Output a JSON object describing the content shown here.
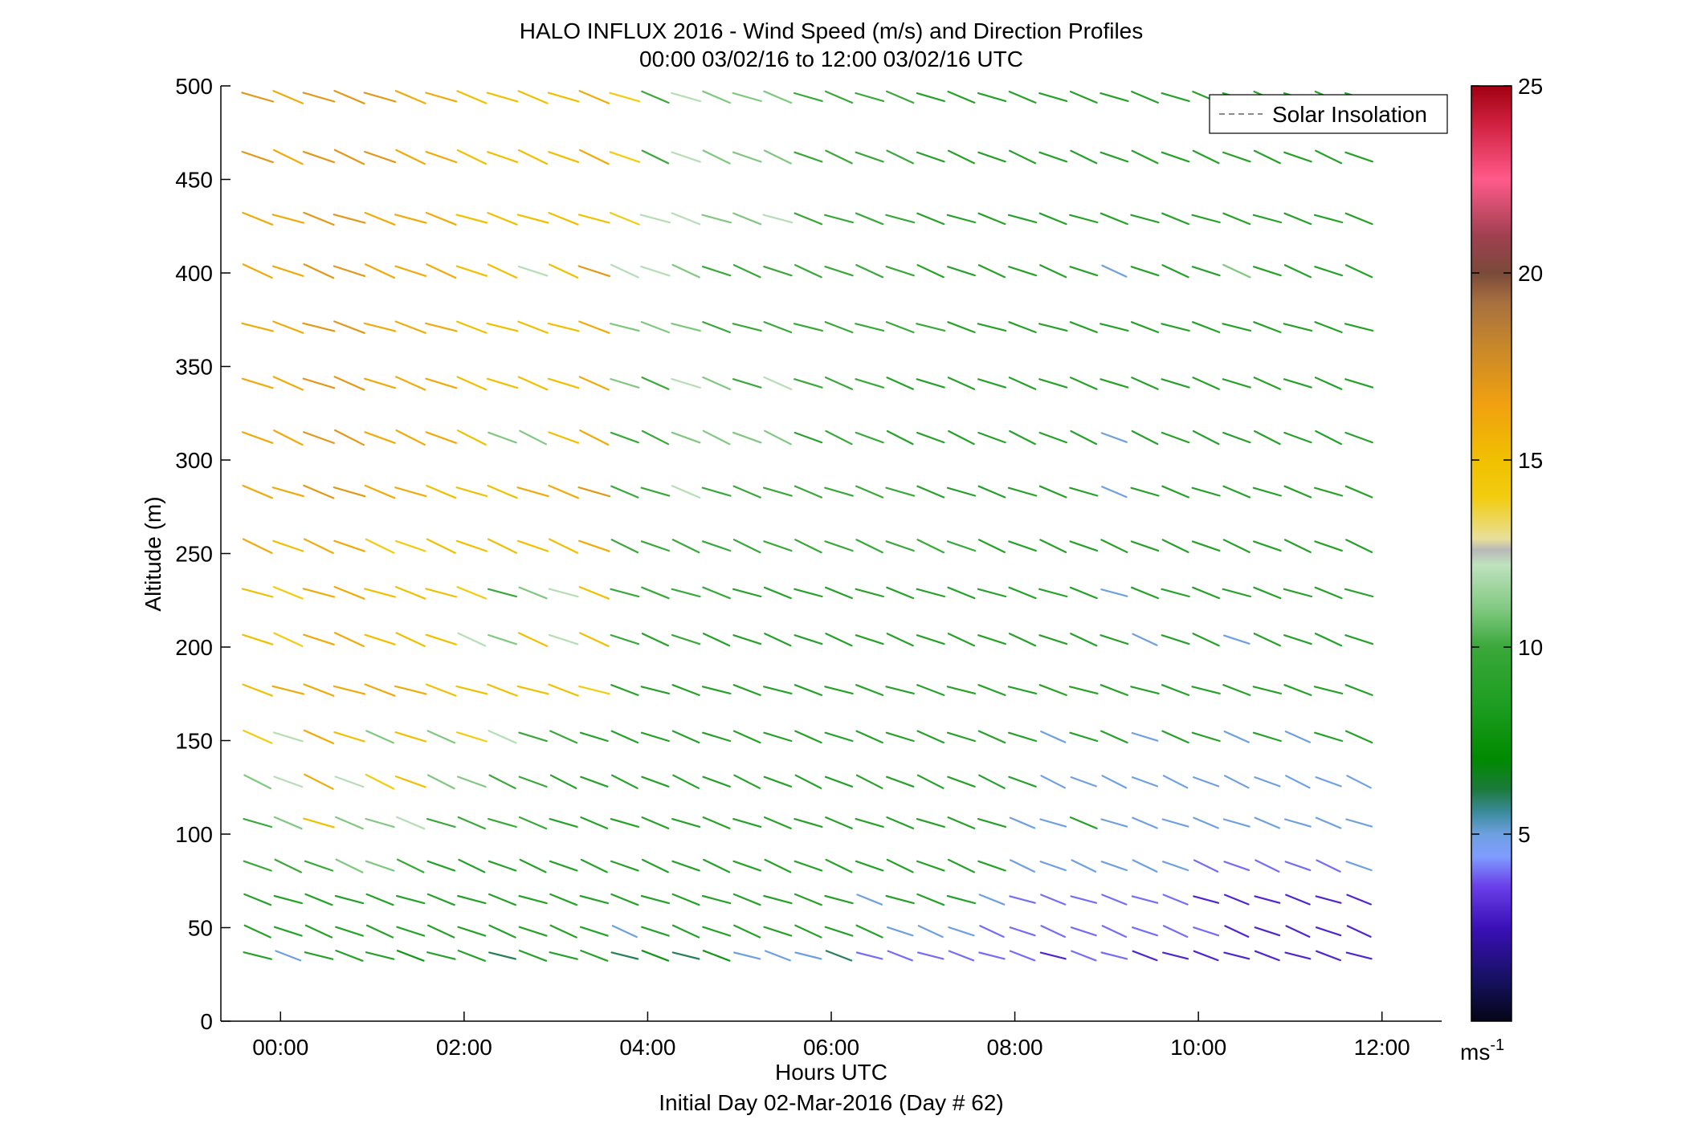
{
  "chart_data": {
    "type": "wind_barb_profile",
    "title": "HALO INFLUX 2016 - Wind Speed (m/s) and Direction Profiles",
    "subtitle": "00:00 03/02/16 to 12:00 03/02/16  UTC",
    "xlabel": "Hours UTC",
    "xlabel2": "Initial Day 02-Mar-2016 (Day # 62)",
    "ylabel": "Altitude (m)",
    "xlim_hours": [
      -0.65,
      12.65
    ],
    "ylim": [
      0,
      500
    ],
    "x_ticks": [
      {
        "value": 0,
        "label": "00:00"
      },
      {
        "value": 2,
        "label": "02:00"
      },
      {
        "value": 4,
        "label": "04:00"
      },
      {
        "value": 6,
        "label": "06:00"
      },
      {
        "value": 8,
        "label": "08:00"
      },
      {
        "value": 10,
        "label": "10:00"
      },
      {
        "value": 12,
        "label": "12:00"
      }
    ],
    "y_ticks": [
      0,
      50,
      100,
      150,
      200,
      250,
      300,
      350,
      400,
      450,
      500
    ],
    "legend": {
      "entries": [
        "Solar Insolation"
      ],
      "placement": "top-right",
      "line_color": "#8a8a8a",
      "line_style": "dashed"
    },
    "colorbar": {
      "min": 0,
      "max": 25,
      "ticks": [
        5,
        10,
        15,
        20,
        25
      ],
      "unit_label": "ms",
      "unit_exponent": "-1",
      "stops": [
        {
          "v": 0.0,
          "color": "#050515"
        },
        {
          "v": 1.0,
          "color": "#14105a"
        },
        {
          "v": 2.5,
          "color": "#3a10b8"
        },
        {
          "v": 3.6,
          "color": "#6a3ee8"
        },
        {
          "v": 4.4,
          "color": "#7f9cff"
        },
        {
          "v": 5.0,
          "color": "#6ea0e0"
        },
        {
          "v": 5.6,
          "color": "#3a8a9a"
        },
        {
          "v": 6.2,
          "color": "#1c7a3a"
        },
        {
          "v": 7.0,
          "color": "#008a00"
        },
        {
          "v": 8.5,
          "color": "#1e9e22"
        },
        {
          "v": 10.0,
          "color": "#3aa83a"
        },
        {
          "v": 11.0,
          "color": "#80c880"
        },
        {
          "v": 12.2,
          "color": "#bfe2bf"
        },
        {
          "v": 12.6,
          "color": "#b8b8b8"
        },
        {
          "v": 12.9,
          "color": "#e8e09a"
        },
        {
          "v": 14.0,
          "color": "#f2cc10"
        },
        {
          "v": 15.0,
          "color": "#f0c000"
        },
        {
          "v": 16.5,
          "color": "#f0a010"
        },
        {
          "v": 18.0,
          "color": "#c8882a"
        },
        {
          "v": 19.2,
          "color": "#a87040"
        },
        {
          "v": 20.0,
          "color": "#7a4a3a"
        },
        {
          "v": 21.0,
          "color": "#a04050"
        },
        {
          "v": 22.5,
          "color": "#ff5a8a"
        },
        {
          "v": 24.0,
          "color": "#d02040"
        },
        {
          "v": 25.0,
          "color": "#a00010"
        }
      ]
    },
    "profile_times_hours": [
      -0.25,
      0.083,
      0.417,
      0.75,
      1.083,
      1.417,
      1.75,
      2.083,
      2.417,
      2.75,
      3.083,
      3.417,
      3.75,
      4.083,
      4.417,
      4.75,
      5.083,
      5.417,
      5.75,
      6.083,
      6.417,
      6.75,
      7.083,
      7.417,
      7.75,
      8.083,
      8.417,
      8.75,
      9.083,
      9.417,
      9.75,
      10.083,
      10.417,
      10.75,
      11.083,
      11.417,
      11.75
    ],
    "altitudes_m": [
      35,
      48,
      65,
      83,
      106,
      128,
      152,
      177,
      204,
      229,
      254,
      283,
      312,
      341,
      371,
      401,
      429,
      462,
      494
    ],
    "series": [
      {
        "alt": 35,
        "speeds": [
          9,
          5,
          9,
          9,
          9,
          8,
          9,
          9,
          6,
          9,
          9,
          9,
          6,
          8,
          6,
          8,
          5,
          5,
          5,
          6,
          4,
          4,
          4,
          4,
          4,
          4,
          3,
          4,
          4,
          3,
          3,
          3,
          3,
          3,
          3,
          3,
          3
        ]
      },
      {
        "alt": 48,
        "speeds": [
          9,
          9,
          9,
          9,
          9,
          9,
          9,
          9,
          9,
          9,
          9,
          9,
          5,
          9,
          9,
          9,
          9,
          9,
          9,
          9,
          9,
          5,
          5,
          5,
          4,
          4,
          4,
          4,
          4,
          4,
          4,
          4,
          3,
          3,
          3,
          3,
          3
        ]
      },
      {
        "alt": 65,
        "speeds": [
          9,
          9,
          9,
          9,
          9,
          9,
          9,
          9,
          9,
          9,
          9,
          9,
          9,
          9,
          9,
          9,
          9,
          9,
          9,
          9,
          5,
          9,
          9,
          9,
          5,
          4,
          4,
          4,
          4,
          4,
          4,
          3,
          3,
          3,
          3,
          3,
          3
        ]
      },
      {
        "alt": 83,
        "speeds": [
          10,
          10,
          10,
          11,
          11,
          10,
          9,
          9,
          9,
          9,
          9,
          9,
          9,
          9,
          9,
          9,
          9,
          9,
          9,
          9,
          9,
          9,
          9,
          9,
          9,
          5,
          5,
          5,
          5,
          5,
          5,
          4,
          4,
          4,
          4,
          4,
          5
        ]
      },
      {
        "alt": 106,
        "speeds": [
          10,
          11,
          15,
          11,
          11,
          12,
          10,
          10,
          10,
          10,
          9,
          9,
          9,
          9,
          9,
          9,
          9,
          9,
          9,
          9,
          9,
          9,
          9,
          9,
          9,
          5,
          5,
          9,
          5,
          5,
          5,
          5,
          5,
          5,
          5,
          5,
          5
        ]
      },
      {
        "alt": 128,
        "speeds": [
          11,
          12,
          16,
          12,
          14,
          15,
          11,
          11,
          10,
          10,
          9,
          9,
          9,
          9,
          9,
          9,
          9,
          9,
          9,
          9,
          9,
          9,
          9,
          9,
          9,
          9,
          5,
          5,
          5,
          5,
          5,
          5,
          5,
          5,
          5,
          5,
          5
        ]
      },
      {
        "alt": 152,
        "speeds": [
          14,
          12,
          16,
          15,
          11,
          15,
          11,
          14,
          12,
          10,
          10,
          9,
          9,
          9,
          9,
          9,
          9,
          9,
          9,
          9,
          9,
          9,
          9,
          9,
          9,
          9,
          5,
          9,
          9,
          5,
          9,
          9,
          5,
          9,
          5,
          9,
          9
        ]
      },
      {
        "alt": 177,
        "speeds": [
          15,
          16,
          16,
          16,
          16,
          16,
          15,
          15,
          15,
          15,
          15,
          14,
          9,
          9,
          9,
          9,
          9,
          9,
          9,
          9,
          9,
          9,
          9,
          9,
          9,
          9,
          9,
          9,
          9,
          9,
          9,
          9,
          9,
          9,
          9,
          9,
          9
        ]
      },
      {
        "alt": 204,
        "speeds": [
          15,
          14,
          16,
          16,
          15,
          15,
          15,
          12,
          11,
          15,
          12,
          15,
          10,
          9,
          10,
          9,
          9,
          9,
          9,
          9,
          9,
          9,
          9,
          9,
          9,
          9,
          9,
          9,
          9,
          5,
          9,
          9,
          5,
          9,
          9,
          9,
          9
        ]
      },
      {
        "alt": 229,
        "speeds": [
          15,
          14,
          16,
          16,
          15,
          15,
          15,
          14,
          10,
          11,
          12,
          15,
          10,
          10,
          10,
          10,
          9,
          9,
          9,
          9,
          9,
          9,
          9,
          9,
          9,
          9,
          9,
          9,
          5,
          9,
          9,
          9,
          9,
          9,
          9,
          9,
          9
        ]
      },
      {
        "alt": 254,
        "speeds": [
          16,
          15,
          16,
          16,
          14,
          14,
          15,
          15,
          15,
          15,
          15,
          16,
          10,
          10,
          10,
          10,
          10,
          10,
          10,
          10,
          10,
          10,
          10,
          10,
          9,
          9,
          9,
          9,
          9,
          9,
          9,
          9,
          9,
          9,
          9,
          9,
          9
        ]
      },
      {
        "alt": 283,
        "speeds": [
          16,
          16,
          17,
          17,
          16,
          16,
          15,
          15,
          15,
          16,
          16,
          17,
          10,
          10,
          12,
          10,
          10,
          10,
          10,
          10,
          10,
          10,
          9,
          9,
          9,
          9,
          9,
          9,
          5,
          9,
          9,
          9,
          9,
          9,
          9,
          9,
          9
        ]
      },
      {
        "alt": 312,
        "speeds": [
          16,
          16,
          17,
          17,
          16,
          16,
          16,
          15,
          11,
          11,
          15,
          16,
          10,
          10,
          11,
          11,
          11,
          11,
          9,
          10,
          10,
          9,
          9,
          9,
          9,
          9,
          9,
          9,
          5,
          9,
          9,
          9,
          9,
          9,
          9,
          9,
          9
        ]
      },
      {
        "alt": 341,
        "speeds": [
          16,
          16,
          17,
          17,
          16,
          16,
          16,
          15,
          15,
          15,
          15,
          16,
          11,
          10,
          12,
          11,
          10,
          12,
          10,
          10,
          10,
          9,
          9,
          9,
          9,
          9,
          9,
          9,
          9,
          9,
          9,
          9,
          9,
          9,
          9,
          9,
          9
        ]
      },
      {
        "alt": 371,
        "speeds": [
          16,
          16,
          17,
          17,
          16,
          16,
          16,
          15,
          15,
          15,
          15,
          16,
          11,
          11,
          11,
          10,
          10,
          10,
          10,
          10,
          10,
          10,
          10,
          9,
          9,
          9,
          9,
          9,
          9,
          9,
          9,
          9,
          9,
          9,
          9,
          9,
          9
        ]
      },
      {
        "alt": 401,
        "speeds": [
          16,
          16,
          17,
          17,
          16,
          16,
          16,
          15,
          15,
          12,
          15,
          17,
          12,
          12,
          11,
          10,
          10,
          10,
          10,
          10,
          10,
          10,
          9,
          9,
          9,
          9,
          9,
          9,
          5,
          9,
          9,
          9,
          11,
          9,
          9,
          9,
          9
        ]
      },
      {
        "alt": 429,
        "speeds": [
          16,
          16,
          17,
          17,
          16,
          16,
          16,
          15,
          15,
          15,
          15,
          15,
          14,
          12,
          12,
          11,
          11,
          12,
          10,
          10,
          10,
          10,
          9,
          9,
          9,
          9,
          9,
          9,
          9,
          9,
          9,
          9,
          9,
          9,
          9,
          9,
          9
        ]
      },
      {
        "alt": 462,
        "speeds": [
          17,
          16,
          17,
          17,
          17,
          16,
          16,
          15,
          15,
          15,
          15,
          16,
          14,
          10,
          12,
          11,
          11,
          11,
          10,
          10,
          10,
          10,
          9,
          9,
          9,
          9,
          9,
          9,
          9,
          9,
          9,
          9,
          9,
          9,
          9,
          9,
          9
        ]
      },
      {
        "alt": 494,
        "speeds": [
          17,
          16,
          17,
          17,
          17,
          16,
          16,
          15,
          15,
          15,
          15,
          16,
          14,
          10,
          12,
          11,
          11,
          11,
          10,
          10,
          10,
          10,
          9,
          9,
          9,
          9,
          9,
          9,
          9,
          9,
          9,
          9,
          9,
          9,
          9,
          9,
          9
        ]
      }
    ]
  }
}
